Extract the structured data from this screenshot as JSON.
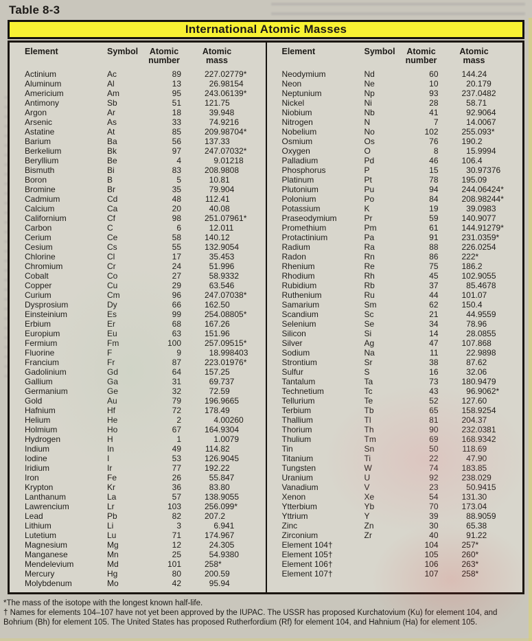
{
  "page": {
    "table_label": "Table 8-3",
    "title": "International Atomic Masses"
  },
  "columns": {
    "element": "Element",
    "symbol": "Symbol",
    "atomic_number_line1": "Atomic",
    "atomic_number_line2": "number",
    "atomic_mass_line1": "Atomic",
    "atomic_mass_line2": "mass"
  },
  "left_rows": [
    [
      "Actinium",
      "Ac",
      "89",
      "227.02779*"
    ],
    [
      "Aluminum",
      "Al",
      "13",
      "26.98154"
    ],
    [
      "Americium",
      "Am",
      "95",
      "243.06139*"
    ],
    [
      "Antimony",
      "Sb",
      "51",
      "121.75"
    ],
    [
      "Argon",
      "Ar",
      "18",
      "39.948"
    ],
    [
      "Arsenic",
      "As",
      "33",
      "74.9216"
    ],
    [
      "Astatine",
      "At",
      "85",
      "209.98704*"
    ],
    [
      "Barium",
      "Ba",
      "56",
      "137.33"
    ],
    [
      "Berkelium",
      "Bk",
      "97",
      "247.07032*"
    ],
    [
      "Beryllium",
      "Be",
      "4",
      "9.01218"
    ],
    [
      "Bismuth",
      "Bi",
      "83",
      "208.9808"
    ],
    [
      "Boron",
      "B",
      "5",
      "10.81"
    ],
    [
      "Bromine",
      "Br",
      "35",
      "79.904"
    ],
    [
      "Cadmium",
      "Cd",
      "48",
      "112.41"
    ],
    [
      "Calcium",
      "Ca",
      "20",
      "40.08"
    ],
    [
      "Californium",
      "Cf",
      "98",
      "251.07961*"
    ],
    [
      "Carbon",
      "C",
      "6",
      "12.011"
    ],
    [
      "Cerium",
      "Ce",
      "58",
      "140.12"
    ],
    [
      "Cesium",
      "Cs",
      "55",
      "132.9054"
    ],
    [
      "Chlorine",
      "Cl",
      "17",
      "35.453"
    ],
    [
      "Chromium",
      "Cr",
      "24",
      "51.996"
    ],
    [
      "Cobalt",
      "Co",
      "27",
      "58.9332"
    ],
    [
      "Copper",
      "Cu",
      "29",
      "63.546"
    ],
    [
      "Curium",
      "Cm",
      "96",
      "247.07038*"
    ],
    [
      "Dysprosium",
      "Dy",
      "66",
      "162.50"
    ],
    [
      "Einsteinium",
      "Es",
      "99",
      "254.08805*"
    ],
    [
      "Erbium",
      "Er",
      "68",
      "167.26"
    ],
    [
      "Europium",
      "Eu",
      "63",
      "151.96"
    ],
    [
      "Fermium",
      "Fm",
      "100",
      "257.09515*"
    ],
    [
      "Fluorine",
      "F",
      "9",
      "18.998403"
    ],
    [
      "Francium",
      "Fr",
      "87",
      "223.01976*"
    ],
    [
      "Gadolinium",
      "Gd",
      "64",
      "157.25"
    ],
    [
      "Gallium",
      "Ga",
      "31",
      "69.737"
    ],
    [
      "Germanium",
      "Ge",
      "32",
      "72.59"
    ],
    [
      "Gold",
      "Au",
      "79",
      "196.9665"
    ],
    [
      "Hafnium",
      "Hf",
      "72",
      "178.49"
    ],
    [
      "Helium",
      "He",
      "2",
      "4.00260"
    ],
    [
      "Holmium",
      "Ho",
      "67",
      "164.9304"
    ],
    [
      "Hydrogen",
      "H",
      "1",
      "1.0079"
    ],
    [
      "Indium",
      "In",
      "49",
      "114.82"
    ],
    [
      "Iodine",
      "I",
      "53",
      "126.9045"
    ],
    [
      "Iridium",
      "Ir",
      "77",
      "192.22"
    ],
    [
      "Iron",
      "Fe",
      "26",
      "55.847"
    ],
    [
      "Krypton",
      "Kr",
      "36",
      "83.80"
    ],
    [
      "Lanthanum",
      "La",
      "57",
      "138.9055"
    ],
    [
      "Lawrencium",
      "Lr",
      "103",
      "256.099*"
    ],
    [
      "Lead",
      "Pb",
      "82",
      "207.2"
    ],
    [
      "Lithium",
      "Li",
      "3",
      "6.941"
    ],
    [
      "Lutetium",
      "Lu",
      "71",
      "174.967"
    ],
    [
      "Magnesium",
      "Mg",
      "12",
      "24.305"
    ],
    [
      "Manganese",
      "Mn",
      "25",
      "54.9380"
    ],
    [
      "Mendelevium",
      "Md",
      "101",
      "258*"
    ],
    [
      "Mercury",
      "Hg",
      "80",
      "200.59"
    ],
    [
      "Molybdenum",
      "Mo",
      "42",
      "95.94"
    ]
  ],
  "right_rows": [
    [
      "Neodymium",
      "Nd",
      "60",
      "144.24"
    ],
    [
      "Neon",
      "Ne",
      "10",
      "20.179"
    ],
    [
      "Neptunium",
      "Np",
      "93",
      "237.0482"
    ],
    [
      "Nickel",
      "Ni",
      "28",
      "58.71"
    ],
    [
      "Niobium",
      "Nb",
      "41",
      "92.9064"
    ],
    [
      "Nitrogen",
      "N",
      "7",
      "14.0067"
    ],
    [
      "Nobelium",
      "No",
      "102",
      "255.093*"
    ],
    [
      "Osmium",
      "Os",
      "76",
      "190.2"
    ],
    [
      "Oxygen",
      "O",
      "8",
      "15.9994"
    ],
    [
      "Palladium",
      "Pd",
      "46",
      "106.4"
    ],
    [
      "Phosphorus",
      "P",
      "15",
      "30.97376"
    ],
    [
      "Platinum",
      "Pt",
      "78",
      "195.09"
    ],
    [
      "Plutonium",
      "Pu",
      "94",
      "244.06424*"
    ],
    [
      "Polonium",
      "Po",
      "84",
      "208.98244*"
    ],
    [
      "Potassium",
      "K",
      "19",
      "39.0983"
    ],
    [
      "Praseodymium",
      "Pr",
      "59",
      "140.9077"
    ],
    [
      "Promethium",
      "Pm",
      "61",
      "144.91279*"
    ],
    [
      "Protactinium",
      "Pa",
      "91",
      "231.0359*"
    ],
    [
      "Radium",
      "Ra",
      "88",
      "226.0254"
    ],
    [
      "Radon",
      "Rn",
      "86",
      "222*"
    ],
    [
      "Rhenium",
      "Re",
      "75",
      "186.2"
    ],
    [
      "Rhodium",
      "Rh",
      "45",
      "102.9055"
    ],
    [
      "Rubidium",
      "Rb",
      "37",
      "85.4678"
    ],
    [
      "Ruthenium",
      "Ru",
      "44",
      "101.07"
    ],
    [
      "Samarium",
      "Sm",
      "62",
      "150.4"
    ],
    [
      "Scandium",
      "Sc",
      "21",
      "44.9559"
    ],
    [
      "Selenium",
      "Se",
      "34",
      "78.96"
    ],
    [
      "Silicon",
      "Si",
      "14",
      "28.0855"
    ],
    [
      "Silver",
      "Ag",
      "47",
      "107.868"
    ],
    [
      "Sodium",
      "Na",
      "11",
      "22.9898"
    ],
    [
      "Strontium",
      "Sr",
      "38",
      "87.62"
    ],
    [
      "Sulfur",
      "S",
      "16",
      "32.06"
    ],
    [
      "Tantalum",
      "Ta",
      "73",
      "180.9479"
    ],
    [
      "Technetium",
      "Tc",
      "43",
      "96.9062*"
    ],
    [
      "Tellurium",
      "Te",
      "52",
      "127.60"
    ],
    [
      "Terbium",
      "Tb",
      "65",
      "158.9254"
    ],
    [
      "Thallium",
      "Tl",
      "81",
      "204.37"
    ],
    [
      "Thorium",
      "Th",
      "90",
      "232.0381"
    ],
    [
      "Thulium",
      "Tm",
      "69",
      "168.9342"
    ],
    [
      "Tin",
      "Sn",
      "50",
      "118.69"
    ],
    [
      "Titanium",
      "Ti",
      "22",
      "47.90"
    ],
    [
      "Tungsten",
      "W",
      "74",
      "183.85"
    ],
    [
      "Uranium",
      "U",
      "92",
      "238.029"
    ],
    [
      "Vanadium",
      "V",
      "23",
      "50.9415"
    ],
    [
      "Xenon",
      "Xe",
      "54",
      "131.30"
    ],
    [
      "Ytterbium",
      "Yb",
      "70",
      "173.04"
    ],
    [
      "Yttrium",
      "Y",
      "39",
      "88.9059"
    ],
    [
      "Zinc",
      "Zn",
      "30",
      "65.38"
    ],
    [
      "Zirconium",
      "Zr",
      "40",
      "91.22"
    ],
    [
      "Element 104†",
      "",
      "104",
      "257*"
    ],
    [
      "Element 105†",
      "",
      "105",
      "260*"
    ],
    [
      "Element 106†",
      "",
      "106",
      "263*"
    ],
    [
      "Element 107†",
      "",
      "107",
      "258*"
    ]
  ],
  "footnotes": {
    "asterisk": "*The mass of the isotope with the longest known half-life.",
    "dagger": "† Names for elements 104–107 have not yet been approved by the IUPAC. The USSR has proposed Kurchatovium (Ku) for element 104, and Bohrium (Bh) for element 105. The United States has proposed Rutherfordium (Rf) for element 104, and Hahnium (Ha) for element 105."
  },
  "colors": {
    "banner_yellow": "#f8f233",
    "table_background": "#d8d6cc",
    "page_background": "#c9c6bc",
    "border_black": "#15130f"
  }
}
